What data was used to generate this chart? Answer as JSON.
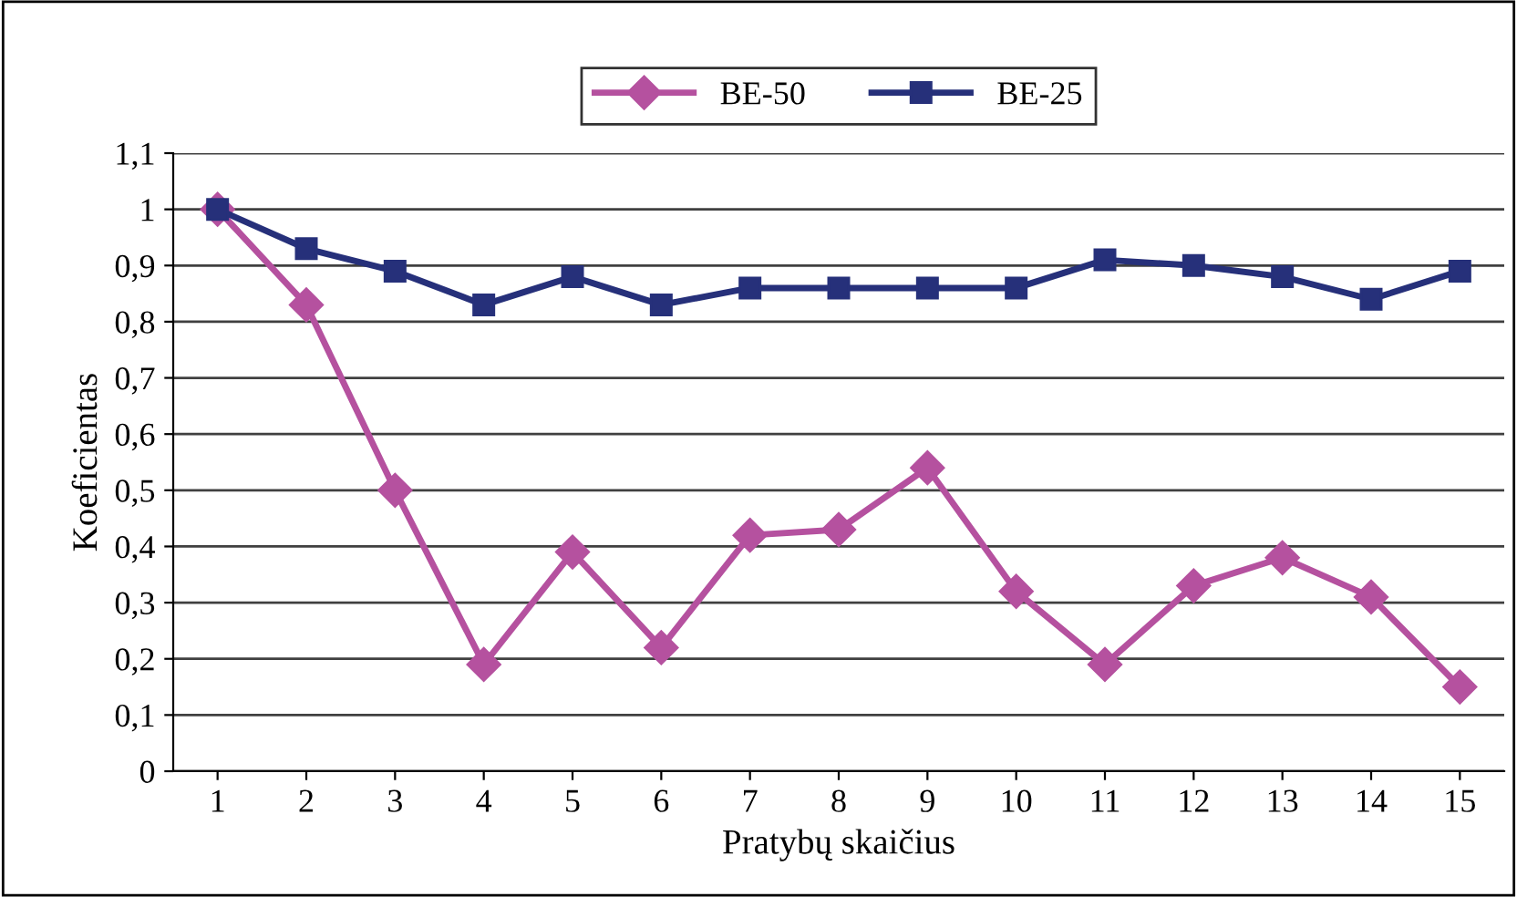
{
  "chart_data": {
    "type": "line",
    "xlabel": "Pratybų skaičius",
    "ylabel": "Koeficientas",
    "categories": [
      "1",
      "2",
      "3",
      "4",
      "5",
      "6",
      "7",
      "8",
      "9",
      "10",
      "11",
      "12",
      "13",
      "14",
      "15"
    ],
    "series": [
      {
        "name": "BE-50",
        "color": "#b5519f",
        "marker": "diamond",
        "values": [
          1.0,
          0.83,
          0.5,
          0.19,
          0.39,
          0.22,
          0.42,
          0.43,
          0.54,
          0.32,
          0.19,
          0.33,
          0.38,
          0.31,
          0.15
        ]
      },
      {
        "name": "BE-25",
        "color": "#26307a",
        "marker": "square",
        "values": [
          1.0,
          0.93,
          0.89,
          0.83,
          0.88,
          0.83,
          0.86,
          0.86,
          0.86,
          0.86,
          0.91,
          0.9,
          0.88,
          0.84,
          0.89
        ]
      }
    ],
    "ylim": [
      0,
      1.1
    ],
    "yticks": [
      {
        "value": 0,
        "label": "0"
      },
      {
        "value": 0.1,
        "label": "0,1"
      },
      {
        "value": 0.2,
        "label": "0,2"
      },
      {
        "value": 0.3,
        "label": "0,3"
      },
      {
        "value": 0.4,
        "label": "0,4"
      },
      {
        "value": 0.5,
        "label": "0,5"
      },
      {
        "value": 0.6,
        "label": "0,6"
      },
      {
        "value": 0.7,
        "label": "0,7"
      },
      {
        "value": 0.8,
        "label": "0,8"
      },
      {
        "value": 0.9,
        "label": "0,9"
      },
      {
        "value": 1,
        "label": "1"
      },
      {
        "value": 1.1,
        "label": "1,1"
      }
    ],
    "grid": "y",
    "legend": "top",
    "line_style": "solid"
  }
}
